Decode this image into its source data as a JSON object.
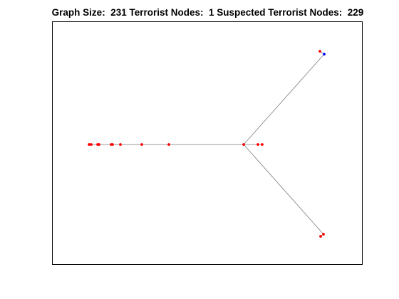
{
  "title": "Graph Size:  231 Terrorist Nodes:  1 Suspected Terrorist Nodes:  229",
  "colors": {
    "suspected_node": "#ff0000",
    "terrorist_node": "#0000ff",
    "edge": "#7a7a7a",
    "frame": "#000000",
    "background": "#ffffff"
  },
  "legend": {
    "terrorist_count": 1,
    "suspected_count": 229,
    "graph_size": 231
  }
}
